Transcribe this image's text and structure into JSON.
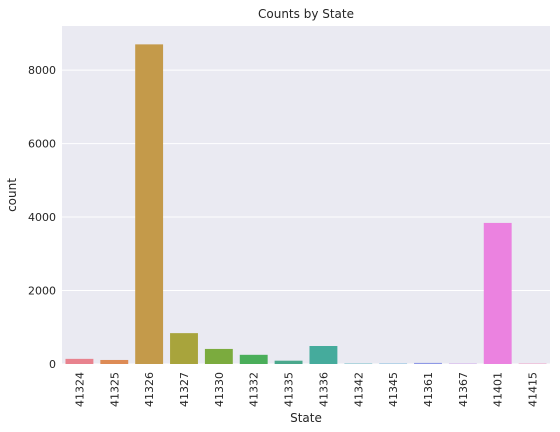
{
  "chart_data": {
    "type": "bar",
    "title": "Counts by State",
    "xlabel": "State",
    "ylabel": "count",
    "categories": [
      "41324",
      "41325",
      "41326",
      "41327",
      "41330",
      "41332",
      "41335",
      "41336",
      "41342",
      "41345",
      "41361",
      "41367",
      "41401",
      "41415"
    ],
    "values": [
      140,
      110,
      8700,
      840,
      410,
      250,
      90,
      490,
      10,
      10,
      30,
      10,
      3840,
      10
    ],
    "colors": [
      "#e8828e",
      "#dd8b55",
      "#c49a4a",
      "#a8a43c",
      "#7bab3e",
      "#4aae5a",
      "#4aa88c",
      "#45ab9c",
      "#46a9b8",
      "#54a4d4",
      "#8f99e6",
      "#c28ae6",
      "#eb82e0",
      "#ef83b6"
    ],
    "yticks": [
      0,
      2000,
      4000,
      6000,
      8000
    ],
    "ylim": [
      0,
      9200
    ],
    "grid": true,
    "background": "#eaeaf2"
  }
}
